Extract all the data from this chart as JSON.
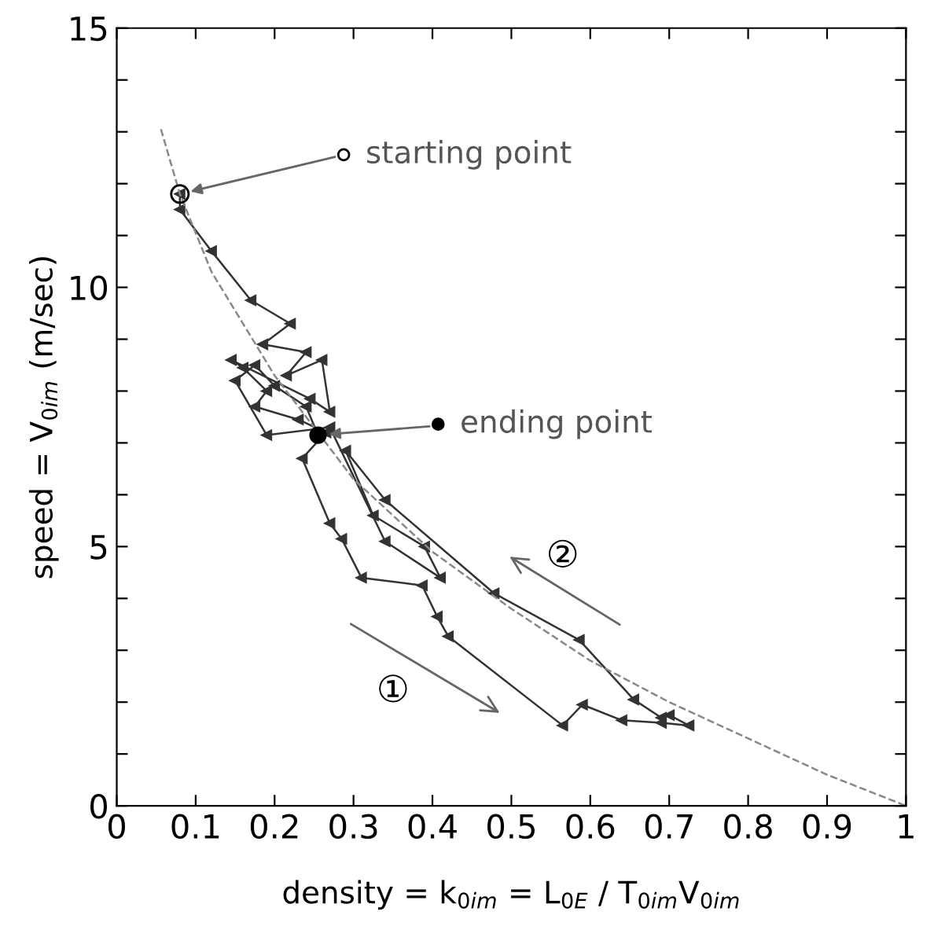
{
  "chart_data": {
    "type": "line",
    "xlabel": "density = k$_{0im}$ = L$_{0E}$ / T$_{0im}$V$_{0im}$",
    "ylabel": "speed = V$_{0im}$ (m/sec)",
    "xlim": [
      0,
      1
    ],
    "ylim": [
      0,
      15
    ],
    "xticks": [
      0,
      0.1,
      0.2,
      0.3,
      0.4,
      0.5,
      0.6,
      0.7,
      0.8,
      0.9,
      1
    ],
    "yticks": [
      0,
      {
        "value": 1,
        "label": null
      },
      {
        "value": 2,
        "label": null
      },
      {
        "value": 3,
        "label": null
      },
      {
        "value": 4,
        "label": null
      },
      5,
      {
        "value": 6,
        "label": null
      },
      {
        "value": 7,
        "label": null
      },
      {
        "value": 8,
        "label": null
      },
      {
        "value": 9,
        "label": null
      },
      10,
      {
        "value": 11,
        "label": null
      },
      {
        "value": 12,
        "label": null
      },
      {
        "value": 13,
        "label": null
      },
      {
        "value": 14,
        "label": null
      },
      15
    ],
    "grid": false,
    "series": [
      {
        "color": "#333333",
        "marker": "triangle",
        "line_style": "solid",
        "x": [
          0.08,
          0.08,
          0.12,
          0.17,
          0.22,
          0.185,
          0.24,
          0.215,
          0.26,
          0.27,
          0.245,
          0.145,
          0.16,
          0.19,
          0.175,
          0.23,
          0.265,
          0.235,
          0.27,
          0.285,
          0.31,
          0.387,
          0.406,
          0.42,
          0.565,
          0.59,
          0.64,
          0.69,
          0.725,
          0.7,
          0.69,
          0.655,
          0.586,
          0.478,
          0.34,
          0.29,
          0.325,
          0.39,
          0.41,
          0.34,
          0.27,
          0.19,
          0.15,
          0.175,
          0.2,
          0.24,
          0.255
        ],
        "values": [
          11.8,
          11.5,
          10.7,
          9.75,
          9.3,
          8.9,
          8.75,
          8.3,
          8.6,
          7.6,
          7.85,
          8.6,
          8.45,
          8.0,
          7.7,
          7.45,
          7.2,
          6.7,
          5.45,
          5.15,
          4.4,
          4.25,
          3.65,
          3.27,
          1.55,
          1.95,
          1.65,
          1.6,
          1.55,
          1.75,
          1.7,
          2.05,
          3.2,
          4.1,
          5.9,
          6.85,
          5.6,
          5.0,
          4.4,
          5.1,
          7.3,
          7.15,
          8.2,
          8.5,
          8.1,
          7.7,
          7.15
        ]
      },
      {
        "color": "#888888",
        "marker": "none",
        "line_style": "dashed",
        "x": [
          0.056,
          0.08,
          0.12,
          0.2,
          0.3,
          0.4,
          0.5,
          0.6,
          0.7,
          0.8,
          0.9,
          1.0
        ],
        "values": [
          13.05,
          11.8,
          10.3,
          8.3,
          6.3,
          4.9,
          3.8,
          2.8,
          2.0,
          1.3,
          0.6,
          0.0
        ]
      }
    ],
    "annotations": [
      {
        "text": "starting point",
        "x": 0.08,
        "y": 11.8
      },
      {
        "text": "ending point",
        "x": 0.255,
        "y": 7.15
      },
      "①",
      "②"
    ]
  }
}
